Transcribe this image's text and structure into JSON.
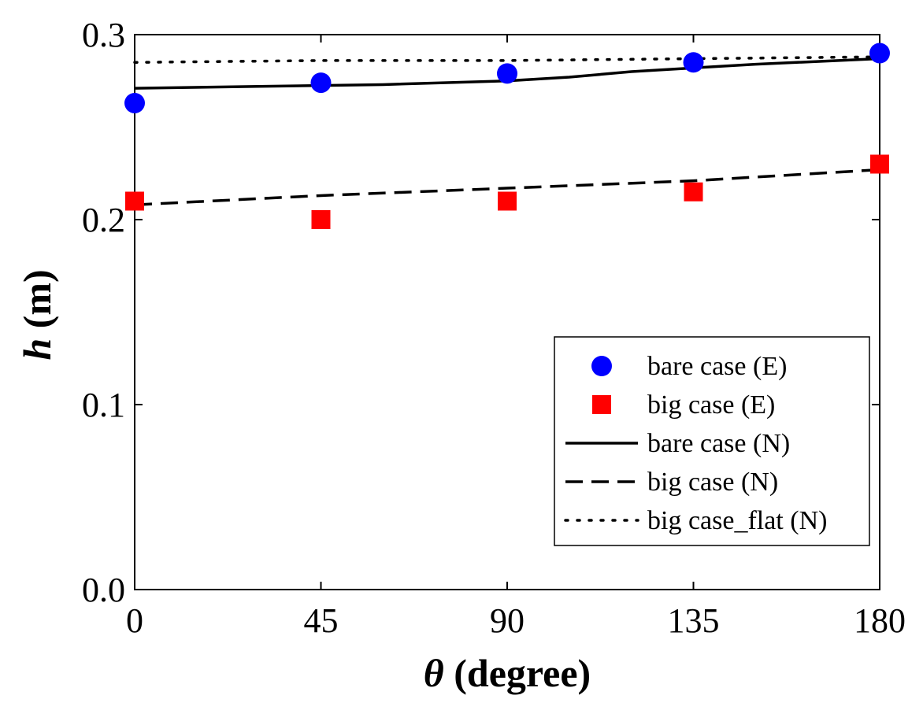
{
  "chart_data": {
    "type": "line",
    "title": "",
    "xlabel_symbol": "θ",
    "xlabel_text": "(degree)",
    "ylabel_symbol": "h",
    "ylabel_text": "(m)",
    "xlim": [
      0,
      180
    ],
    "ylim": [
      0.0,
      0.3
    ],
    "xticks": [
      0,
      45,
      90,
      135,
      180
    ],
    "xtick_labels": [
      "0",
      "45",
      "90",
      "135",
      "180"
    ],
    "yticks": [
      0.0,
      0.1,
      0.2,
      0.3
    ],
    "ytick_labels": [
      "0.0",
      "0.1",
      "0.2",
      "0.3"
    ],
    "grid": false,
    "legend_position": "lower-right",
    "series": [
      {
        "name": "bare case (E)",
        "kind": "scatter",
        "marker": "circle",
        "color": "#0000ff",
        "x": [
          0,
          45,
          90,
          135,
          180
        ],
        "y": [
          0.263,
          0.274,
          0.279,
          0.285,
          0.29
        ]
      },
      {
        "name": "big case (E)",
        "kind": "scatter",
        "marker": "square",
        "color": "#ff0000",
        "x": [
          0,
          45,
          90,
          135,
          180
        ],
        "y": [
          0.21,
          0.2,
          0.21,
          0.215,
          0.23
        ]
      },
      {
        "name": "bare case (N)",
        "kind": "line",
        "dash": "solid",
        "color": "#000000",
        "x": [
          0,
          30,
          60,
          90,
          105,
          120,
          150,
          180
        ],
        "y": [
          0.271,
          0.272,
          0.273,
          0.275,
          0.277,
          0.28,
          0.284,
          0.287
        ]
      },
      {
        "name": "big case (N)",
        "kind": "line",
        "dash": "dashed",
        "color": "#000000",
        "x": [
          0,
          45,
          90,
          135,
          180
        ],
        "y": [
          0.208,
          0.213,
          0.217,
          0.221,
          0.227
        ]
      },
      {
        "name": "big case_flat (N)",
        "kind": "line",
        "dash": "dotted",
        "color": "#000000",
        "x": [
          0,
          45,
          90,
          135,
          180
        ],
        "y": [
          0.285,
          0.286,
          0.286,
          0.287,
          0.288
        ]
      }
    ]
  }
}
